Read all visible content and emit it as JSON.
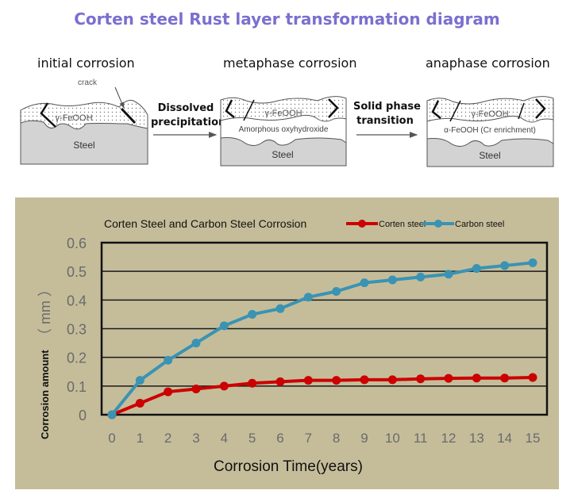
{
  "diagram": {
    "title": "Corten steel Rust layer transformation diagram",
    "title_color": "#7b6fcf",
    "stages": [
      {
        "label": "initial corrosion",
        "layers": {
          "top": "γ-FeOOH",
          "bottom": "Steel"
        },
        "annotation": "crack"
      },
      {
        "label": "metaphase corrosion",
        "layers": {
          "top": "γ-FeOOH",
          "middle": "Amorphous oxyhydroxide",
          "bottom": "Steel"
        }
      },
      {
        "label": "anaphase corrosion",
        "layers": {
          "top": "γ-FeOOH",
          "middle": "α-FeOOH  (Cr enrichment)",
          "bottom": "Steel"
        }
      }
    ],
    "transitions": [
      {
        "line1": "Dissolved",
        "line2": "precipitation"
      },
      {
        "line1": "Solid phase",
        "line2": "transition"
      }
    ]
  },
  "chart_data": {
    "type": "line",
    "title": "Corten Steel and Carbon Steel Corrosion",
    "xlabel": "Corrosion Time(years)",
    "ylabel": "Corrosion amount",
    "ylabel_unit": "（ mm ）",
    "x": [
      0,
      1,
      2,
      3,
      4,
      5,
      6,
      7,
      8,
      9,
      10,
      11,
      12,
      13,
      14,
      15
    ],
    "x_tick_labels": [
      "0",
      "1",
      "2",
      "3",
      "4",
      "5",
      "6",
      "7",
      "8",
      "9",
      "10",
      "11",
      "12",
      "13",
      "14",
      "15"
    ],
    "y_tick_labels": [
      "0",
      "0.1",
      "0.2",
      "0.3",
      "0.4",
      "0.5",
      "0.6"
    ],
    "ylim": [
      0,
      0.6
    ],
    "grid": true,
    "legend_position": "top-right",
    "background": "#c5bd9a",
    "series": [
      {
        "name": "Corten steel",
        "color": "#cc0000",
        "values": [
          0,
          0.04,
          0.08,
          0.09,
          0.1,
          0.11,
          0.115,
          0.12,
          0.12,
          0.122,
          0.122,
          0.125,
          0.127,
          0.128,
          0.128,
          0.13
        ]
      },
      {
        "name": "Carbon steel",
        "color": "#3a93b3",
        "values": [
          0,
          0.12,
          0.19,
          0.25,
          0.31,
          0.35,
          0.37,
          0.41,
          0.43,
          0.46,
          0.47,
          0.48,
          0.49,
          0.51,
          0.52,
          0.53
        ]
      }
    ]
  }
}
